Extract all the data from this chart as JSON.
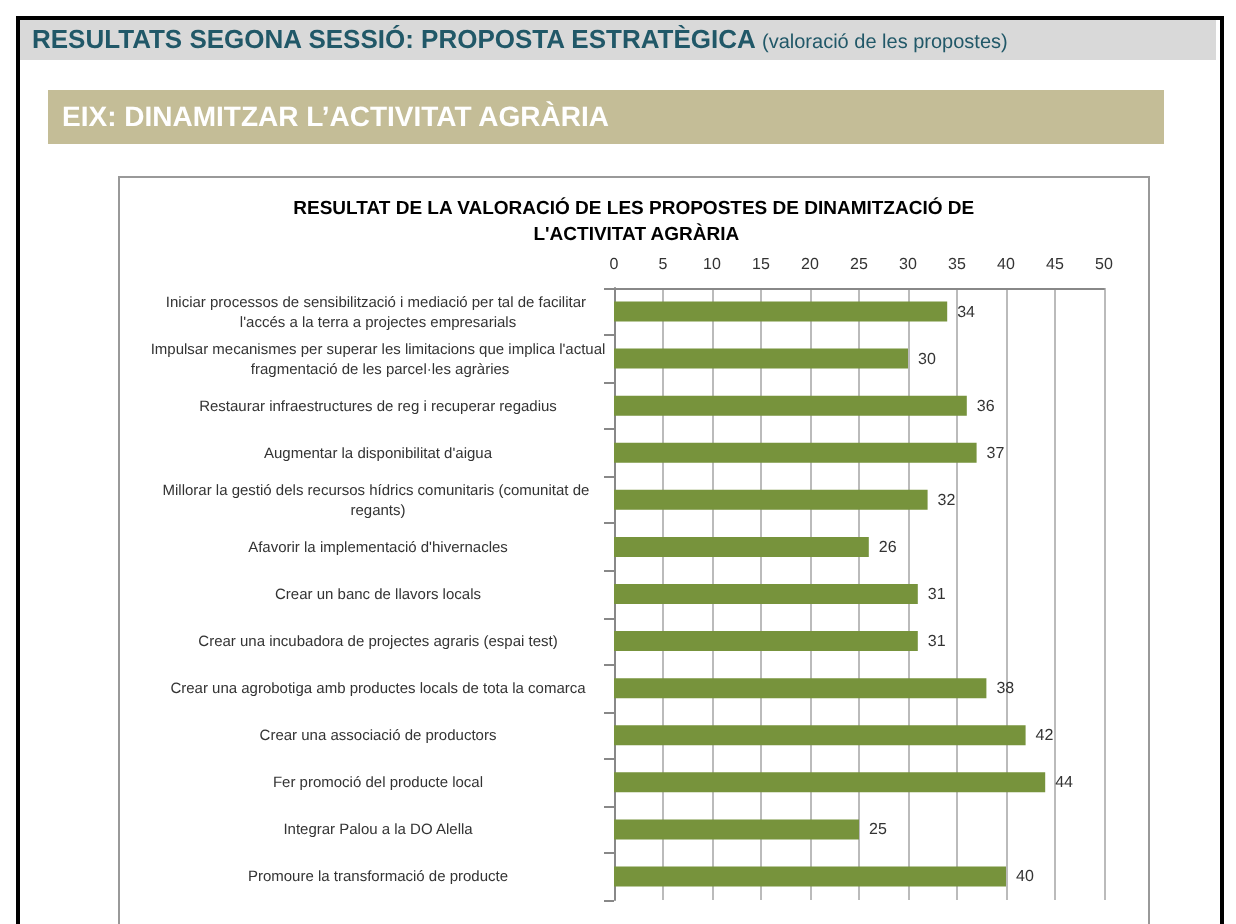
{
  "chart_data": {
    "type": "bar",
    "orientation": "horizontal",
    "title": "RESULTAT DE LA VALORACIÓ DE LES PROPOSTES DE DINAMITZACIÓ DE L'ACTIVITAT AGRÀRIA",
    "annotations": [
      "RESULTATS SEGONA SESSIÓ: PROPOSTA ESTRATÈGICA (valoració de les propostes)",
      "EIX: DINAMITZAR L’ACTIVITAT AGRÀRIA"
    ],
    "categories": [
      "Iniciar processos de sensibilització i mediació per tal de facilitar l'accés a la terra a projectes empresarials",
      "Impulsar mecanismes per superar les limitacions que implica l'actual fragmentació de les parcel·les agràries",
      "Restaurar infraestructures de reg i recuperar regadius",
      "Augmentar la disponibilitat d'aigua",
      "Millorar la gestió dels recursos hídrics comunitaris (comunitat de regants)",
      "Afavorir la implementació d'hivernacles",
      "Crear un banc de llavors locals",
      "Crear una incubadora de projectes agraris (espai test)",
      "Crear una agrobotiga amb productes locals de tota la comarca",
      "Crear una associació de productors",
      "Fer promoció del producte local",
      "Integrar Palou a la DO Alella",
      "Promoure la transformació de producte"
    ],
    "values": [
      34,
      30,
      36,
      37,
      32,
      26,
      31,
      31,
      38,
      42,
      44,
      25,
      40
    ],
    "color": "#77933c",
    "xlim": [
      0,
      50
    ],
    "xticks": [
      0,
      5,
      10,
      15,
      20,
      25,
      30,
      35,
      40,
      45,
      50
    ],
    "grid": "x",
    "data_labels": true
  }
}
